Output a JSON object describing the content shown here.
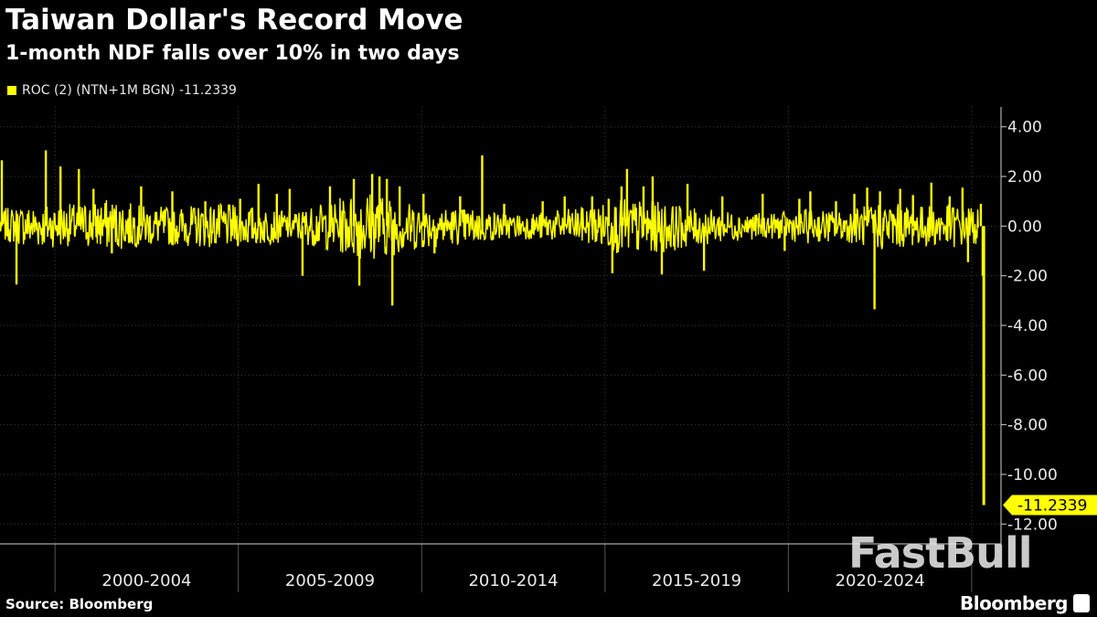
{
  "header": {
    "title": "Taiwan Dollar's Record Move",
    "subtitle": "1-month NDF falls over 10% in two days"
  },
  "legend": {
    "label": "ROC (2) (NTN+1M BGN) -11.2339",
    "color": "#ffff00"
  },
  "footer": {
    "source": "Source: Bloomberg",
    "brand": "Bloomberg",
    "watermark": "FastBull"
  },
  "chart_data": {
    "type": "line",
    "title": "Taiwan Dollar's Record Move",
    "subtitle": "1-month NDF falls over 10% in two days",
    "xlabel": "",
    "ylabel": "",
    "x_tick_labels": [
      "2000-2004",
      "2005-2009",
      "2010-2014",
      "2015-2019",
      "2020-2024"
    ],
    "y_ticks": [
      4.0,
      2.0,
      0.0,
      -2.0,
      -4.0,
      -6.0,
      -8.0,
      -10.0,
      -12.0
    ],
    "y_tick_labels": [
      "4.00",
      "2.00",
      "0.00",
      "-2.00",
      "-4.00",
      "-6.00",
      "-8.00",
      "-10.00",
      "-12.00"
    ],
    "ylim": [
      -12.8,
      4.8
    ],
    "xlim": [
      1998.5,
      2025.8
    ],
    "y_axis_side": "right",
    "grid": true,
    "legend_position": "top-left",
    "series": [
      {
        "name": "ROC (2) (NTN+1M BGN)",
        "color": "#ffff00",
        "last_value": -11.2339,
        "last_value_label": "-11.2339",
        "band": [
          [
            1998.5,
            -0.6,
            0.7
          ],
          [
            1999.5,
            -0.9,
            0.9
          ],
          [
            2000.5,
            -0.8,
            0.9
          ],
          [
            2001.5,
            -1.0,
            1.1
          ],
          [
            2002.5,
            -0.8,
            0.8
          ],
          [
            2003.5,
            -0.8,
            0.8
          ],
          [
            2004.5,
            -0.9,
            0.9
          ],
          [
            2005.5,
            -0.8,
            0.8
          ],
          [
            2006.5,
            -0.6,
            0.6
          ],
          [
            2007.5,
            -1.0,
            1.0
          ],
          [
            2008.5,
            -1.4,
            1.5
          ],
          [
            2009.5,
            -1.1,
            1.0
          ],
          [
            2010.5,
            -0.8,
            0.8
          ],
          [
            2011.5,
            -0.7,
            0.7
          ],
          [
            2012.5,
            -0.5,
            0.5
          ],
          [
            2013.5,
            -0.6,
            0.6
          ],
          [
            2014.5,
            -0.7,
            0.8
          ],
          [
            2015.5,
            -1.2,
            1.1
          ],
          [
            2016.5,
            -1.1,
            1.0
          ],
          [
            2017.5,
            -0.8,
            0.7
          ],
          [
            2018.5,
            -0.6,
            0.6
          ],
          [
            2019.5,
            -0.5,
            0.5
          ],
          [
            2020.5,
            -0.7,
            0.7
          ],
          [
            2021.5,
            -0.6,
            0.6
          ],
          [
            2022.5,
            -1.0,
            1.0
          ],
          [
            2023.5,
            -0.8,
            0.8
          ],
          [
            2024.5,
            -0.9,
            0.9
          ],
          [
            2025.2,
            -0.8,
            0.8
          ]
        ],
        "spikes": [
          [
            1998.55,
            2.65
          ],
          [
            1998.95,
            -2.35
          ],
          [
            1999.75,
            3.05
          ],
          [
            2000.15,
            2.4
          ],
          [
            2000.65,
            2.3
          ],
          [
            2001.05,
            1.5
          ],
          [
            2001.55,
            -1.1
          ],
          [
            2002.35,
            1.6
          ],
          [
            2003.2,
            1.4
          ],
          [
            2004.1,
            1.0
          ],
          [
            2005.05,
            1.1
          ],
          [
            2005.55,
            1.7
          ],
          [
            2006.05,
            1.3
          ],
          [
            2006.4,
            1.5
          ],
          [
            2006.75,
            -2.0
          ],
          [
            2007.5,
            1.6
          ],
          [
            2008.15,
            1.9
          ],
          [
            2008.3,
            -2.4
          ],
          [
            2008.65,
            2.1
          ],
          [
            2008.85,
            2.0
          ],
          [
            2009.05,
            1.9
          ],
          [
            2009.2,
            -3.2
          ],
          [
            2009.4,
            1.6
          ],
          [
            2010.05,
            1.3
          ],
          [
            2010.35,
            -1.1
          ],
          [
            2011.05,
            1.2
          ],
          [
            2011.65,
            2.85
          ],
          [
            2012.25,
            0.9
          ],
          [
            2013.3,
            1.0
          ],
          [
            2013.9,
            1.2
          ],
          [
            2014.65,
            1.2
          ],
          [
            2015.1,
            1.1
          ],
          [
            2015.2,
            -1.9
          ],
          [
            2015.45,
            1.6
          ],
          [
            2015.6,
            2.3
          ],
          [
            2016.05,
            1.6
          ],
          [
            2016.3,
            2.0
          ],
          [
            2016.55,
            -1.95
          ],
          [
            2017.25,
            1.7
          ],
          [
            2017.7,
            -1.8
          ],
          [
            2018.2,
            1.2
          ],
          [
            2019.3,
            1.3
          ],
          [
            2019.9,
            -1.0
          ],
          [
            2020.3,
            1.1
          ],
          [
            2020.6,
            1.4
          ],
          [
            2021.3,
            1.0
          ],
          [
            2021.8,
            1.3
          ],
          [
            2022.15,
            1.55
          ],
          [
            2022.35,
            -3.35
          ],
          [
            2022.5,
            1.4
          ],
          [
            2023.05,
            1.5
          ],
          [
            2023.4,
            1.25
          ],
          [
            2023.9,
            1.75
          ],
          [
            2024.4,
            1.2
          ],
          [
            2024.75,
            1.55
          ],
          [
            2024.9,
            -1.45
          ],
          [
            2025.25,
            0.9
          ],
          [
            2025.3,
            -2.0
          ],
          [
            2025.33,
            -11.2339
          ]
        ]
      }
    ]
  }
}
